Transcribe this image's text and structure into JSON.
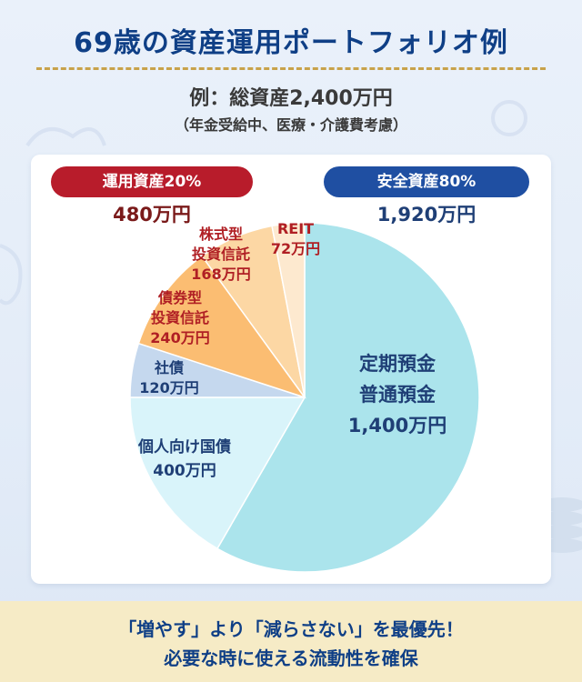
{
  "title": "69歳の資産運用ポートフォリオ例",
  "subtitle": "例：総資産2,400万円",
  "note": "（年金受給中、医療・介護費考慮）",
  "groups": {
    "risk": {
      "label": "運用資産20%",
      "amount": "480万円",
      "color": "#b81c2b"
    },
    "safe": {
      "label": "安全資産80%",
      "amount": "1,920万円",
      "color": "#1f4fa2"
    }
  },
  "chart_data": {
    "type": "pie",
    "total": 2400,
    "unit": "万円",
    "slices": [
      {
        "key": "deposits",
        "lines": [
          "定期預金",
          "普通預金",
          "1,400万円"
        ],
        "value": 1400,
        "color": "#abe4ec",
        "label_color": "#1f3f76"
      },
      {
        "key": "jgb",
        "lines": [
          "個人向け国債",
          "400万円"
        ],
        "value": 400,
        "color": "#d9f4fa",
        "label_color": "#1f3f76"
      },
      {
        "key": "corp",
        "lines": [
          "社債",
          "120万円"
        ],
        "value": 120,
        "color": "#c5d8ee",
        "label_color": "#1f3f76"
      },
      {
        "key": "bondfund",
        "lines": [
          "債券型",
          "投資信託",
          "240万円"
        ],
        "value": 240,
        "color": "#fbbd72",
        "label_color": "#b01f24"
      },
      {
        "key": "stockfund",
        "lines": [
          "株式型",
          "投資信託",
          "168万円"
        ],
        "value": 168,
        "color": "#fcd7a4",
        "label_color": "#b01f24"
      },
      {
        "key": "reit",
        "lines": [
          "REIT",
          "72万円"
        ],
        "value": 72,
        "color": "#fde9cf",
        "label_color": "#b01f24"
      }
    ]
  },
  "footer": {
    "line1": "「増やす」より「減らさない」を最優先！",
    "line2": "必要な時に使える流動性を確保"
  }
}
